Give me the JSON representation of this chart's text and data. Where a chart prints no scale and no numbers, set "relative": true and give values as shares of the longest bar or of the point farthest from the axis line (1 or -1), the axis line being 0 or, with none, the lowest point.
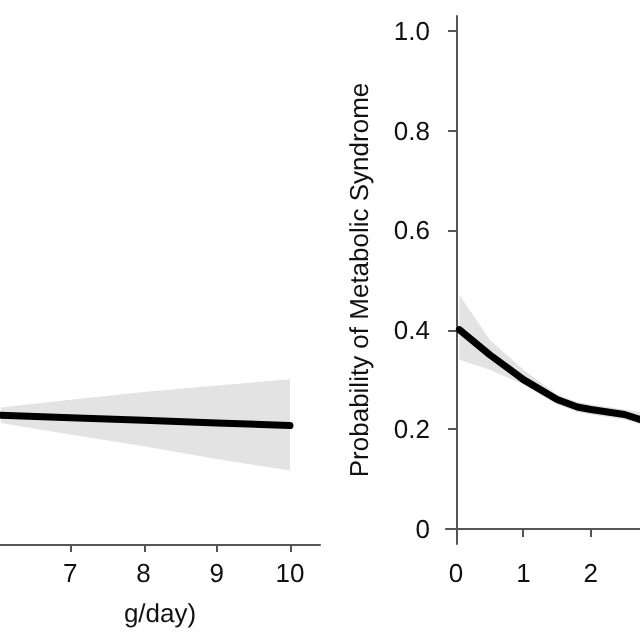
{
  "chart_data": [
    {
      "type": "line",
      "xlabel": "g/day)",
      "relative": true,
      "x": [
        6.05,
        7,
        8,
        9,
        10
      ],
      "xlim": [
        6.04,
        10.41
      ],
      "xticks": [
        7,
        8,
        9,
        10
      ],
      "tick_labels": "x",
      "grid": false,
      "marker": "none",
      "series": [
        {
          "color": "#000000",
          "values": [
            1,
            0.98,
            0.96,
            0.94,
            0.92
          ],
          "lower": [
            0.94,
            0.85,
            0.76,
            0.66,
            0.57
          ],
          "upper": [
            1.06,
            1.12,
            1.18,
            1.23,
            1.28
          ]
        }
      ]
    },
    {
      "type": "line",
      "ylabel": "Probability of Metabolic Syndrome",
      "x": [
        0.05,
        0.5,
        1,
        1.5,
        1.8,
        2,
        2.5,
        2.73
      ],
      "xlim": [
        -0.15,
        2.73
      ],
      "ylim": [
        -0.03,
        1.03
      ],
      "xticks": [
        0,
        1,
        2
      ],
      "yticks": [
        {
          "value": 0,
          "label": "0"
        },
        {
          "value": 0.2,
          "label": "0.2"
        },
        {
          "value": 0.4,
          "label": "0.4"
        },
        {
          "value": 0.6,
          "label": "0.6"
        },
        {
          "value": 0.8,
          "label": "0.8"
        },
        {
          "value": 1,
          "label": "1.0"
        }
      ],
      "grid": false,
      "marker": "none",
      "series": [
        {
          "color": "#000000",
          "values": [
            0.4,
            0.35,
            0.3,
            0.26,
            0.245,
            0.24,
            0.23,
            0.22
          ],
          "lower": [
            0.34,
            0.32,
            0.29,
            0.25,
            0.235,
            0.23,
            0.22,
            0.21
          ],
          "upper": [
            0.47,
            0.38,
            0.32,
            0.27,
            0.255,
            0.25,
            0.24,
            0.235
          ]
        }
      ]
    }
  ]
}
